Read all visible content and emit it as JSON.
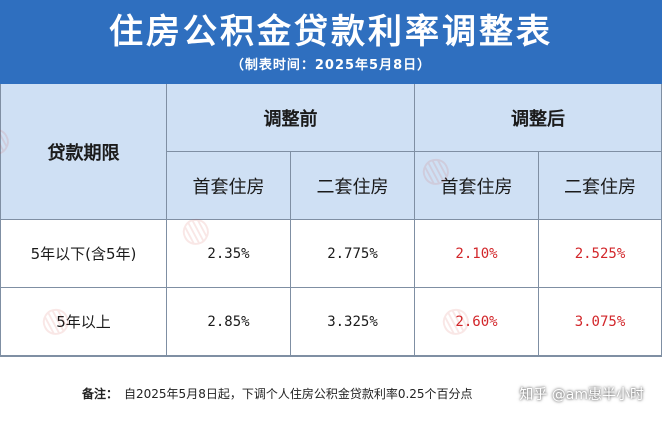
{
  "header": {
    "title": "住房公积金贷款利率调整表",
    "subtitle": "（制表时间：2025年5月8日）"
  },
  "table": {
    "loan_term_label": "贷款期限",
    "before_label": "调整前",
    "after_label": "调整后",
    "first_home_label": "首套住房",
    "second_home_label": "二套住房",
    "rows": [
      {
        "term": "5年以下(含5年)",
        "before_first": "2.35%",
        "before_second": "2.775%",
        "after_first": "2.10%",
        "after_second": "2.525%"
      },
      {
        "term": "5年以上",
        "before_first": "2.85%",
        "before_second": "3.325%",
        "after_first": "2.60%",
        "after_second": "3.075%"
      }
    ]
  },
  "footer": {
    "note_label": "备注：",
    "note_text": "自2025年5月8日起，下调个人住房公积金贷款利率0.25个百分点",
    "brand": "知乎 @am惠半小时"
  },
  "colors": {
    "header_bg": "#2f6fbf",
    "header_cell_bg": "#cfe0f4",
    "adjusted_value": "#d2262a"
  }
}
